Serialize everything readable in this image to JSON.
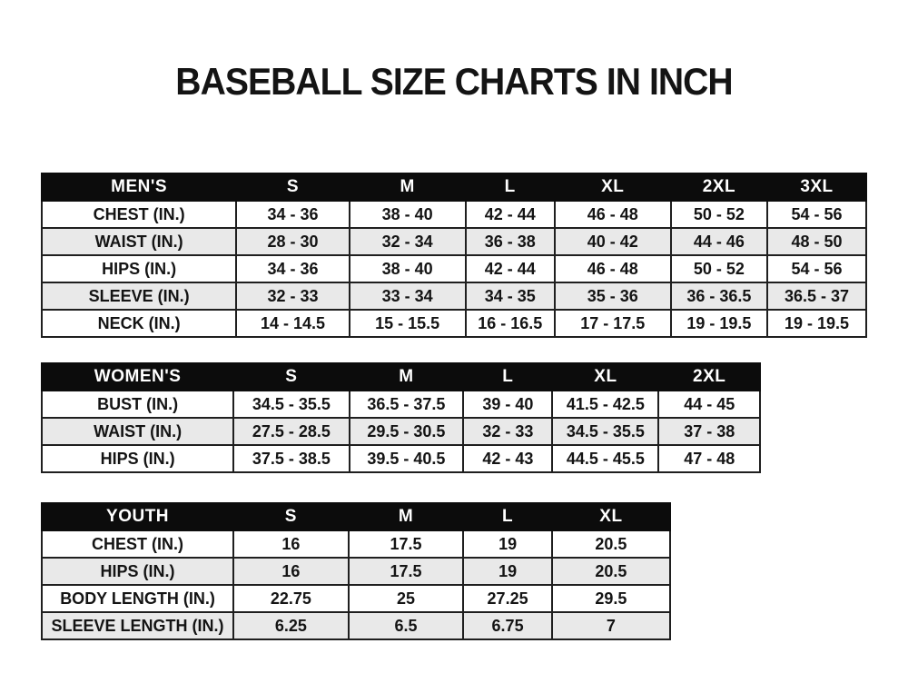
{
  "page_title": "BASEBALL SIZE CHARTS IN INCH",
  "chart_data": [
    {
      "type": "table",
      "title": "MEN'S",
      "columns": [
        "S",
        "M",
        "L",
        "XL",
        "2XL",
        "3XL"
      ],
      "row_labels": [
        "CHEST (IN.)",
        "WAIST (IN.)",
        "HIPS (IN.)",
        "SLEEVE (IN.)",
        "NECK (IN.)"
      ],
      "rows": [
        [
          "34 - 36",
          "38 - 40",
          "42 - 44",
          "46 - 48",
          "50 - 52",
          "54 - 56"
        ],
        [
          "28 - 30",
          "32 - 34",
          "36 - 38",
          "40 - 42",
          "44 - 46",
          "48 - 50"
        ],
        [
          "34 - 36",
          "38 - 40",
          "42 - 44",
          "46 - 48",
          "50 - 52",
          "54 - 56"
        ],
        [
          "32 - 33",
          "33 - 34",
          "34 - 35",
          "35 - 36",
          "36 - 36.5",
          "36.5 - 37"
        ],
        [
          "14 - 14.5",
          "15 - 15.5",
          "16 - 16.5",
          "17 - 17.5",
          "19 - 19.5",
          "19 - 19.5"
        ]
      ]
    },
    {
      "type": "table",
      "title": "WOMEN'S",
      "columns": [
        "S",
        "M",
        "L",
        "XL",
        "2XL"
      ],
      "row_labels": [
        "BUST (IN.)",
        "WAIST (IN.)",
        "HIPS (IN.)"
      ],
      "rows": [
        [
          "34.5 - 35.5",
          "36.5 - 37.5",
          "39 - 40",
          "41.5 - 42.5",
          "44 - 45"
        ],
        [
          "27.5 - 28.5",
          "29.5 - 30.5",
          "32 - 33",
          "34.5 - 35.5",
          "37 - 38"
        ],
        [
          "37.5 - 38.5",
          "39.5 - 40.5",
          "42 - 43",
          "44.5 - 45.5",
          "47 - 48"
        ]
      ]
    },
    {
      "type": "table",
      "title": "YOUTH",
      "columns": [
        "S",
        "M",
        "L",
        "XL"
      ],
      "row_labels": [
        "CHEST (IN.)",
        "HIPS (IN.)",
        "BODY LENGTH (IN.)",
        "SLEEVE LENGTH (IN.)"
      ],
      "rows": [
        [
          "16",
          "17.5",
          "19",
          "20.5"
        ],
        [
          "16",
          "17.5",
          "19",
          "20.5"
        ],
        [
          "22.75",
          "25",
          "27.25",
          "29.5"
        ],
        [
          "6.25",
          "6.5",
          "6.75",
          "7"
        ]
      ]
    }
  ],
  "colors": {
    "header_bg": "#0c0c0c",
    "header_text": "#ffffff",
    "stripe": "#e9e9e9",
    "border": "#1f1f1f",
    "text": "#141414",
    "background": "#ffffff"
  }
}
